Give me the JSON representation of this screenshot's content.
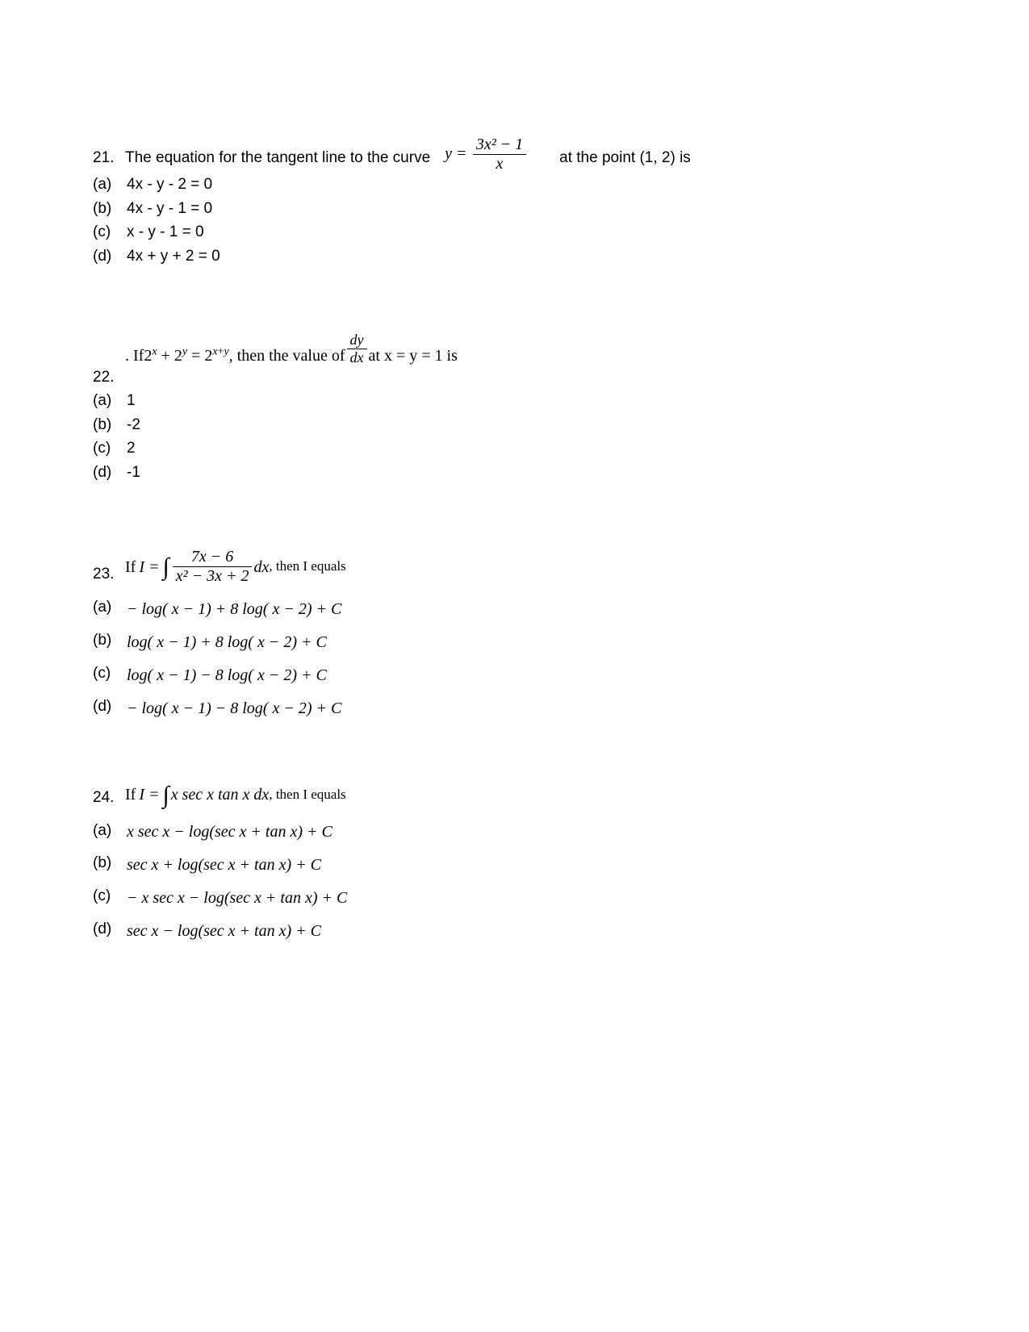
{
  "text_color": "#000000",
  "background_color": "#ffffff",
  "body_fontsize": 19,
  "math_fontsize": 20,
  "q21": {
    "num": "21.",
    "stem_before": "The equation for the tangent line to the curve",
    "formula": {
      "lhs": "y =",
      "numerator": "3x² − 1",
      "denominator": "x"
    },
    "stem_after": "at the point (1, 2) is",
    "options": {
      "a": "4x - y - 2 = 0",
      "b": "4x - y - 1 = 0",
      "c": "x - y - 1 = 0",
      "d": "4x + y + 2 = 0"
    }
  },
  "q22": {
    "num": "22.",
    "stem_prefix": ". If ",
    "expr_lhs_html": "2<sup><i>x</i></sup> + 2<sup><i>y</i></sup> = 2<sup><i>x</i>+<i>y</i></sup>",
    "stem_mid": " , then the value of  ",
    "frac": {
      "num": "dy",
      "den": "dx"
    },
    "stem_suffix": "  at x = y = 1 is",
    "options": {
      "a": "1",
      "b": "-2",
      "c": "2",
      "d": "-1"
    }
  },
  "q23": {
    "num": "23.",
    "stem_prefix": "If ",
    "I_eq": "I =",
    "frac": {
      "num": "7x − 6",
      "den": "x² − 3x + 2"
    },
    "dx": " dx",
    "stem_suffix": ", then I equals",
    "options": {
      "a": "− log( x − 1) + 8 log( x − 2) + C",
      "b": "log( x − 1) + 8 log( x − 2) + C",
      "c": "log( x − 1) − 8 log( x − 2) + C",
      "d": "− log( x − 1) − 8 log( x − 2) + C"
    }
  },
  "q24": {
    "num": "24.",
    "stem_prefix": "If ",
    "I_eq": "I =",
    "integrand": "x sec x tan  x dx",
    "stem_suffix": ", then I equals",
    "options": {
      "a": "x sec x − log(sec  x + tan x) + C",
      "b": "sec x + log(sec  x + tan x) + C",
      "c": "− x sec x − log(sec  x + tan x) + C",
      "d": "sec x − log(sec  x + tan x) + C"
    }
  },
  "labels": {
    "a": "(a)",
    "b": "(b)",
    "c": "(c)",
    "d": "(d)"
  }
}
